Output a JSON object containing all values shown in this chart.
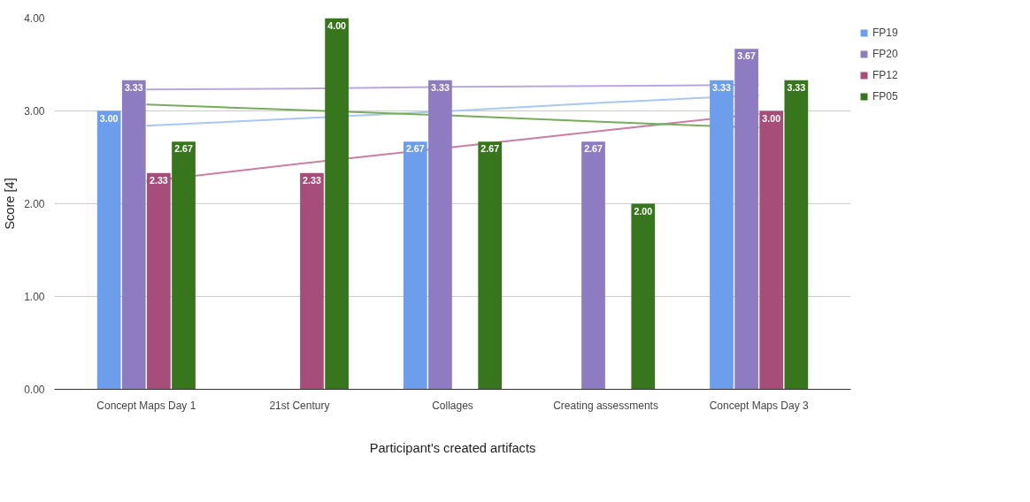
{
  "chart_data": {
    "type": "bar",
    "xlabel": "Participant's created artifacts",
    "ylabel": "Score [4]",
    "categories": [
      "Concept Maps Day 1",
      "21st Century",
      "Collages",
      "Creating assessments",
      "Concept Maps Day 3"
    ],
    "series": [
      {
        "name": "FP19",
        "color": "#6d9eeb",
        "values": [
          3.0,
          null,
          2.67,
          null,
          3.33
        ],
        "value_labels": [
          "3.00",
          null,
          "2.67",
          null,
          "3.33"
        ]
      },
      {
        "name": "FP20",
        "color": "#8e7cc3",
        "values": [
          3.33,
          null,
          3.33,
          2.67,
          3.67
        ],
        "value_labels": [
          "3.33",
          null,
          "3.33",
          "2.67",
          "3.67"
        ]
      },
      {
        "name": "FP12",
        "color": "#a64d79",
        "values": [
          2.33,
          2.33,
          null,
          null,
          3.0
        ],
        "value_labels": [
          "2.33",
          "2.33",
          null,
          null,
          "3.00"
        ]
      },
      {
        "name": "FP05",
        "color": "#38761d",
        "values": [
          2.67,
          4.0,
          2.67,
          2.0,
          3.33
        ],
        "value_labels": [
          "2.67",
          "4.00",
          "2.67",
          "2.00",
          "3.33"
        ]
      },
      {
        "type": "line",
        "color": "#a9c6f5",
        "values": [
          2.84,
          2.92,
          3.0,
          3.09,
          3.17
        ]
      },
      {
        "type": "line",
        "color": "#b9a8dd",
        "values": [
          3.23,
          3.24,
          3.26,
          3.27,
          3.28
        ]
      },
      {
        "type": "line",
        "color": "#c97fa3",
        "values": [
          2.24,
          2.43,
          2.61,
          2.79,
          2.97
        ]
      },
      {
        "type": "line",
        "color": "#76ad5c",
        "values": [
          3.07,
          3.01,
          2.95,
          2.88,
          2.82
        ]
      }
    ],
    "ylim": [
      0,
      4
    ],
    "yticks": [
      {
        "value": 0,
        "label": "0.00"
      },
      {
        "value": 1,
        "label": "1.00"
      },
      {
        "value": 2,
        "label": "2.00"
      },
      {
        "value": 3,
        "label": "3.00"
      },
      {
        "value": 4,
        "label": "4.00"
      }
    ],
    "grid": "y",
    "legend": "top right"
  }
}
